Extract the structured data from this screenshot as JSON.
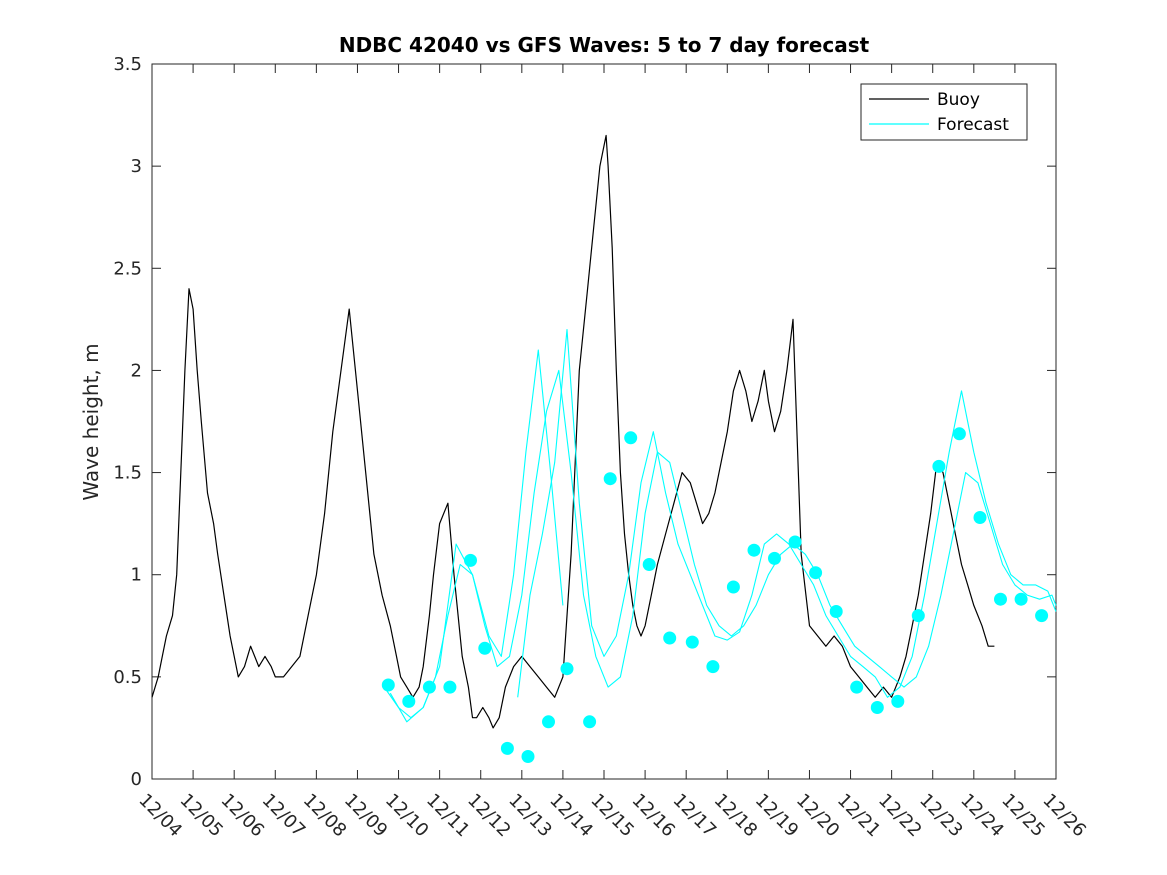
{
  "chart_data": {
    "type": "line",
    "title": "NDBC 42040 vs GFS Waves: 5 to 7 day forecast",
    "xlabel": "",
    "ylabel": "Wave height, m",
    "xlim": [
      0,
      22
    ],
    "ylim": [
      0,
      3.5
    ],
    "yticks": [
      0,
      0.5,
      1,
      1.5,
      2,
      2.5,
      3,
      3.5
    ],
    "ytick_labels": [
      "0",
      "0.5",
      "1",
      "1.5",
      "2",
      "2.5",
      "3",
      "3.5"
    ],
    "xtick_labels": [
      "12/04",
      "12/05",
      "12/06",
      "12/07",
      "12/08",
      "12/09",
      "12/10",
      "12/11",
      "12/12",
      "12/13",
      "12/14",
      "12/15",
      "12/16",
      "12/17",
      "12/18",
      "12/19",
      "12/20",
      "12/21",
      "12/22",
      "12/23",
      "12/24",
      "12/25",
      "12/26"
    ],
    "colors": {
      "buoy": "#000000",
      "forecast": "#00ffff",
      "axis": "#262626"
    },
    "legend": {
      "position": "top-right",
      "entries": [
        {
          "label": "Buoy",
          "color": "#000000"
        },
        {
          "label": "Forecast",
          "color": "#00ffff"
        }
      ]
    },
    "series": [
      {
        "name": "Buoy",
        "x": [
          0,
          0.15,
          0.25,
          0.35,
          0.5,
          0.6,
          0.7,
          0.8,
          0.9,
          1.0,
          1.1,
          1.2,
          1.35,
          1.5,
          1.6,
          1.75,
          1.9,
          2.0,
          2.1,
          2.25,
          2.4,
          2.5,
          2.6,
          2.75,
          2.9,
          3.0,
          3.2,
          3.4,
          3.6,
          3.8,
          4.0,
          4.2,
          4.4,
          4.6,
          4.8,
          5.0,
          5.2,
          5.4,
          5.6,
          5.8,
          5.95,
          6.05,
          6.2,
          6.35,
          6.5,
          6.6,
          6.75,
          6.85,
          7.0,
          7.2,
          7.35,
          7.45,
          7.55,
          7.7,
          7.8,
          7.9,
          8.05,
          8.2,
          8.3,
          8.45,
          8.6,
          8.8,
          9.0,
          9.2,
          9.4,
          9.6,
          9.8,
          10.0,
          10.2,
          10.4,
          10.6,
          10.75,
          10.9,
          11.0,
          11.05,
          11.1,
          11.2,
          11.3,
          11.4,
          11.5,
          11.6,
          11.7,
          11.8,
          11.9,
          12.0,
          12.15,
          12.3,
          12.5,
          12.7,
          12.9,
          13.1,
          13.25,
          13.4,
          13.55,
          13.7,
          13.85,
          14.0,
          14.15,
          14.3,
          14.45,
          14.6,
          14.75,
          14.9,
          15.0,
          15.15,
          15.3,
          15.45,
          15.6,
          15.8,
          16.0,
          16.2,
          16.4,
          16.6,
          16.8,
          17.0,
          17.2,
          17.4,
          17.6,
          17.8,
          18.0,
          18.2,
          18.35,
          18.5,
          18.65,
          18.8,
          18.95,
          19.1,
          19.25,
          19.4,
          19.55,
          19.7,
          19.85,
          20.0,
          20.2,
          20.35,
          20.5
        ],
        "y": [
          0.4,
          0.5,
          0.6,
          0.7,
          0.8,
          1.0,
          1.5,
          2.0,
          2.4,
          2.3,
          2.0,
          1.75,
          1.4,
          1.25,
          1.1,
          0.9,
          0.7,
          0.6,
          0.5,
          0.55,
          0.65,
          0.6,
          0.55,
          0.6,
          0.55,
          0.5,
          0.5,
          0.55,
          0.6,
          0.8,
          1.0,
          1.3,
          1.7,
          2.0,
          2.3,
          1.9,
          1.5,
          1.1,
          0.9,
          0.75,
          0.6,
          0.5,
          0.45,
          0.4,
          0.45,
          0.55,
          0.8,
          1.0,
          1.25,
          1.35,
          1.0,
          0.8,
          0.6,
          0.45,
          0.3,
          0.3,
          0.35,
          0.3,
          0.25,
          0.3,
          0.45,
          0.55,
          0.6,
          0.55,
          0.5,
          0.45,
          0.4,
          0.5,
          1.1,
          2.0,
          2.4,
          2.7,
          3.0,
          3.1,
          3.15,
          3.0,
          2.6,
          2.0,
          1.5,
          1.2,
          1.0,
          0.85,
          0.75,
          0.7,
          0.75,
          0.9,
          1.05,
          1.2,
          1.35,
          1.5,
          1.45,
          1.35,
          1.25,
          1.3,
          1.4,
          1.55,
          1.7,
          1.9,
          2.0,
          1.9,
          1.75,
          1.85,
          2.0,
          1.85,
          1.7,
          1.8,
          2.0,
          2.25,
          1.1,
          0.75,
          0.7,
          0.65,
          0.7,
          0.65,
          0.55,
          0.5,
          0.45,
          0.4,
          0.45,
          0.4,
          0.5,
          0.6,
          0.75,
          0.9,
          1.1,
          1.3,
          1.55,
          1.5,
          1.35,
          1.2,
          1.05,
          0.95,
          0.85,
          0.75,
          0.65,
          0.65
        ]
      },
      {
        "name": "Forecast",
        "x": [
          5.65,
          6.0,
          6.3,
          6.6,
          6.9,
          7.2,
          7.5,
          7.8,
          8.1,
          8.4,
          8.7,
          9.0,
          9.3,
          9.6,
          9.9,
          10.2,
          10.5,
          10.8,
          11.1,
          11.4,
          11.7,
          12.0,
          12.3,
          12.6,
          12.9,
          13.2,
          13.5,
          13.8,
          14.1,
          14.4,
          14.7,
          15.0,
          15.3,
          15.6,
          15.9,
          16.2,
          16.5,
          16.8,
          17.1,
          17.4,
          17.7,
          18.0,
          18.3,
          18.6,
          18.9,
          19.2,
          19.5,
          19.8,
          20.1,
          20.4,
          20.7,
          21.0,
          21.3,
          21.6,
          21.9,
          22.0
        ],
        "y": [
          0.45,
          0.35,
          0.3,
          0.35,
          0.5,
          0.8,
          1.05,
          1.0,
          0.75,
          0.55,
          0.6,
          0.9,
          1.4,
          1.8,
          2.0,
          1.5,
          0.9,
          0.6,
          0.45,
          0.5,
          0.8,
          1.3,
          1.6,
          1.55,
          1.3,
          1.05,
          0.85,
          0.75,
          0.7,
          0.75,
          0.85,
          1.0,
          1.1,
          1.15,
          1.1,
          1.0,
          0.85,
          0.75,
          0.65,
          0.6,
          0.55,
          0.5,
          0.45,
          0.5,
          0.65,
          0.9,
          1.2,
          1.5,
          1.45,
          1.25,
          1.05,
          0.95,
          0.9,
          0.88,
          0.9,
          0.85
        ]
      },
      {
        "name": "Forecast",
        "x": [
          5.8,
          6.2,
          6.6,
          7.0,
          7.4,
          7.8,
          8.2,
          8.5,
          8.8,
          9.1,
          9.4,
          9.7,
          10.0
        ],
        "y": [
          0.42,
          0.28,
          0.35,
          0.55,
          1.15,
          1.0,
          0.7,
          0.6,
          1.0,
          1.6,
          2.1,
          1.5,
          0.85
        ]
      },
      {
        "name": "Forecast",
        "x": [
          8.9,
          9.2,
          9.5,
          9.8,
          10.1,
          10.4,
          10.7,
          11.0,
          11.3,
          11.6,
          11.9,
          12.2,
          12.5,
          12.8,
          13.1,
          13.4,
          13.7,
          14.0,
          14.3,
          14.6,
          14.9,
          15.2,
          15.5,
          15.8,
          16.1,
          16.4,
          16.7,
          17.0,
          17.3,
          17.6,
          17.9,
          18.2,
          18.5,
          18.8,
          19.1,
          19.4,
          19.7,
          20.0,
          20.3,
          20.6,
          20.9,
          21.2,
          21.5,
          21.8,
          22.0
        ],
        "y": [
          0.4,
          0.9,
          1.2,
          1.55,
          2.2,
          1.35,
          0.75,
          0.6,
          0.7,
          1.0,
          1.45,
          1.7,
          1.4,
          1.15,
          1.0,
          0.85,
          0.7,
          0.68,
          0.72,
          0.9,
          1.15,
          1.2,
          1.15,
          1.05,
          0.95,
          0.8,
          0.7,
          0.6,
          0.55,
          0.5,
          0.4,
          0.45,
          0.6,
          0.9,
          1.25,
          1.6,
          1.9,
          1.6,
          1.35,
          1.15,
          1.0,
          0.95,
          0.95,
          0.92,
          0.82
        ]
      }
    ],
    "markers": {
      "name": "Forecast",
      "x": [
        5.75,
        6.25,
        6.75,
        7.25,
        7.75,
        8.1,
        8.65,
        9.15,
        9.65,
        10.1,
        10.65,
        11.15,
        11.65,
        12.1,
        12.6,
        13.15,
        13.65,
        14.15,
        14.65,
        15.15,
        15.65,
        16.15,
        16.65,
        17.15,
        17.65,
        18.15,
        18.65,
        19.15,
        19.65,
        20.15,
        20.65,
        21.15,
        21.65
      ],
      "y": [
        0.46,
        0.38,
        0.45,
        0.45,
        1.07,
        0.64,
        0.15,
        0.11,
        0.28,
        0.54,
        0.28,
        1.47,
        1.67,
        1.05,
        0.69,
        0.67,
        0.55,
        0.94,
        1.12,
        1.08,
        1.16,
        1.01,
        0.82,
        0.45,
        0.35,
        0.38,
        0.8,
        1.53,
        1.69,
        1.28,
        0.88,
        0.88,
        0.8
      ]
    }
  }
}
